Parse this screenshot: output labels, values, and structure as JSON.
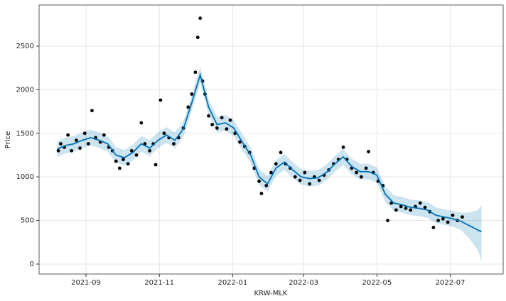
{
  "chart_data": {
    "type": "forecast",
    "xlabel": "KRW-MLK",
    "ylabel": "Price",
    "xlim": [
      "2021-07-24",
      "2022-08-14"
    ],
    "ylim": [
      -114,
      2972
    ],
    "xticks": [
      {
        "value": "2021-09-01",
        "label": "2021-09"
      },
      {
        "value": "2021-11-01",
        "label": "2021-11"
      },
      {
        "value": "2022-01-01",
        "label": "2022-01"
      },
      {
        "value": "2022-03-01",
        "label": "2022-03"
      },
      {
        "value": "2022-05-01",
        "label": "2022-05"
      },
      {
        "value": "2022-07-01",
        "label": "2022-07"
      }
    ],
    "yticks": [
      0,
      500,
      1000,
      1500,
      2000,
      2500
    ],
    "grid": true,
    "x": [
      "2021-08-08",
      "2021-08-15",
      "2021-08-22",
      "2021-08-29",
      "2021-09-05",
      "2021-09-12",
      "2021-09-19",
      "2021-09-26",
      "2021-10-03",
      "2021-10-10",
      "2021-10-17",
      "2021-10-24",
      "2021-10-31",
      "2021-11-07",
      "2021-11-14",
      "2021-11-21",
      "2021-11-28",
      "2021-12-05",
      "2021-12-12",
      "2021-12-19",
      "2021-12-26",
      "2022-01-02",
      "2022-01-09",
      "2022-01-16",
      "2022-01-23",
      "2022-01-30",
      "2022-02-06",
      "2022-02-13",
      "2022-02-20",
      "2022-02-27",
      "2022-03-06",
      "2022-03-13",
      "2022-03-20",
      "2022-03-27",
      "2022-04-03",
      "2022-04-10",
      "2022-04-17",
      "2022-04-24",
      "2022-05-01",
      "2022-05-08",
      "2022-05-15",
      "2022-05-22",
      "2022-05-29",
      "2022-06-05",
      "2022-06-12",
      "2022-06-19",
      "2022-06-26",
      "2022-07-03",
      "2022-07-10",
      "2022-07-17",
      "2022-07-24",
      "2022-07-27"
    ],
    "forecast": {
      "color": "#0072B2",
      "values": [
        1320,
        1360,
        1380,
        1420,
        1450,
        1420,
        1380,
        1250,
        1220,
        1280,
        1380,
        1330,
        1420,
        1480,
        1420,
        1550,
        1850,
        2170,
        1800,
        1600,
        1620,
        1560,
        1400,
        1250,
        1000,
        920,
        1100,
        1170,
        1080,
        1000,
        980,
        990,
        1050,
        1150,
        1230,
        1120,
        1060,
        1060,
        1020,
        800,
        700,
        680,
        650,
        640,
        620,
        560,
        540,
        520,
        490,
        440,
        390,
        370
      ]
    },
    "band": {
      "color": "#0072B2",
      "lower": [
        1230,
        1270,
        1290,
        1330,
        1360,
        1330,
        1290,
        1160,
        1130,
        1190,
        1290,
        1240,
        1330,
        1390,
        1330,
        1460,
        1760,
        2080,
        1710,
        1510,
        1530,
        1470,
        1310,
        1160,
        910,
        830,
        1010,
        1080,
        990,
        910,
        890,
        900,
        960,
        1060,
        1140,
        1030,
        970,
        970,
        930,
        710,
        610,
        590,
        560,
        550,
        530,
        470,
        450,
        430,
        390,
        290,
        160,
        30
      ],
      "upper": [
        1410,
        1450,
        1470,
        1510,
        1540,
        1510,
        1470,
        1340,
        1310,
        1370,
        1470,
        1420,
        1510,
        1570,
        1510,
        1640,
        1940,
        2260,
        1890,
        1690,
        1710,
        1650,
        1490,
        1340,
        1090,
        1010,
        1190,
        1260,
        1170,
        1090,
        1070,
        1080,
        1140,
        1240,
        1320,
        1210,
        1150,
        1150,
        1110,
        890,
        790,
        770,
        740,
        730,
        710,
        650,
        630,
        610,
        590,
        590,
        620,
        680
      ]
    },
    "points": {
      "color": "#000000",
      "x": [
        "2021-08-09",
        "2021-08-11",
        "2021-08-14",
        "2021-08-17",
        "2021-08-20",
        "2021-08-24",
        "2021-08-27",
        "2021-08-31",
        "2021-09-03",
        "2021-09-06",
        "2021-09-09",
        "2021-09-13",
        "2021-09-16",
        "2021-09-20",
        "2021-09-23",
        "2021-09-26",
        "2021-09-29",
        "2021-10-02",
        "2021-10-06",
        "2021-10-09",
        "2021-10-13",
        "2021-10-17",
        "2021-10-20",
        "2021-10-24",
        "2021-10-27",
        "2021-10-29",
        "2021-11-02",
        "2021-11-05",
        "2021-11-09",
        "2021-11-13",
        "2021-11-17",
        "2021-11-21",
        "2021-11-25",
        "2021-11-28",
        "2021-12-01",
        "2021-12-03",
        "2021-12-05",
        "2021-12-07",
        "2021-12-09",
        "2021-12-12",
        "2021-12-15",
        "2021-12-19",
        "2021-12-23",
        "2021-12-27",
        "2021-12-30",
        "2022-01-03",
        "2022-01-07",
        "2022-01-11",
        "2022-01-15",
        "2022-01-19",
        "2022-01-23",
        "2022-01-25",
        "2022-01-29",
        "2022-02-02",
        "2022-02-06",
        "2022-02-10",
        "2022-02-14",
        "2022-02-18",
        "2022-02-22",
        "2022-02-26",
        "2022-03-02",
        "2022-03-06",
        "2022-03-10",
        "2022-03-14",
        "2022-03-18",
        "2022-03-22",
        "2022-03-26",
        "2022-03-30",
        "2022-04-03",
        "2022-04-06",
        "2022-04-10",
        "2022-04-14",
        "2022-04-18",
        "2022-04-22",
        "2022-04-24",
        "2022-04-28",
        "2022-05-02",
        "2022-05-06",
        "2022-05-10",
        "2022-05-13",
        "2022-05-17",
        "2022-05-21",
        "2022-05-25",
        "2022-05-29",
        "2022-06-02",
        "2022-06-06",
        "2022-06-10",
        "2022-06-14",
        "2022-06-17",
        "2022-06-21",
        "2022-06-25",
        "2022-06-29",
        "2022-07-03",
        "2022-07-07",
        "2022-07-11"
      ],
      "values": [
        1300,
        1380,
        1340,
        1480,
        1300,
        1420,
        1330,
        1500,
        1380,
        1760,
        1450,
        1400,
        1480,
        1340,
        1300,
        1180,
        1100,
        1200,
        1150,
        1300,
        1250,
        1620,
        1380,
        1300,
        1380,
        1140,
        1880,
        1500,
        1450,
        1380,
        1450,
        1560,
        1800,
        1950,
        2200,
        2600,
        2820,
        2100,
        1950,
        1700,
        1600,
        1560,
        1680,
        1550,
        1650,
        1500,
        1400,
        1350,
        1280,
        1100,
        950,
        810,
        900,
        1050,
        1150,
        1280,
        1150,
        1100,
        1000,
        960,
        1050,
        920,
        1000,
        960,
        1020,
        1080,
        1150,
        1200,
        1340,
        1200,
        1100,
        1050,
        1000,
        1100,
        1290,
        1050,
        950,
        900,
        500,
        700,
        620,
        660,
        640,
        620,
        660,
        700,
        650,
        600,
        420,
        500,
        520,
        480,
        560,
        500,
        540
      ]
    }
  }
}
